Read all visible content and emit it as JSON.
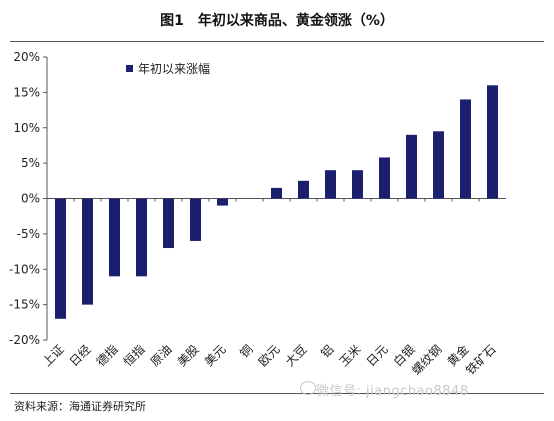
{
  "figure": {
    "title": "图1　年初以来商品、黄金领涨（%）",
    "source": "资料来源：海通证券研究所",
    "watermark": "微信号: jiangchao8848"
  },
  "colors": {
    "bar": "#1a1f6e",
    "axis": "#555555",
    "text": "#222222"
  },
  "chart_data": {
    "type": "bar",
    "title": "",
    "xlabel": "",
    "ylabel": "",
    "ylim": [
      -20,
      20
    ],
    "yticks": [
      -20,
      -15,
      -10,
      -5,
      0,
      5,
      10,
      15,
      20
    ],
    "ytick_labels": [
      "-20%",
      "-15%",
      "-10%",
      "-5%",
      "0%",
      "5%",
      "10%",
      "15%",
      "20%"
    ],
    "legend_position": "top-left",
    "grid": false,
    "categories": [
      "上证",
      "日经",
      "德指",
      "恒指",
      "原油",
      "美股",
      "美元",
      "铜",
      "欧元",
      "大豆",
      "铝",
      "玉米",
      "日元",
      "白银",
      "螺纹钢",
      "黄金",
      "铁矿石"
    ],
    "series": [
      {
        "name": "年初以来涨幅",
        "values": [
          -17,
          -15,
          -11,
          -11,
          -7,
          -6,
          -1,
          0,
          1.5,
          2.5,
          4,
          4,
          5.8,
          9,
          9.5,
          14,
          16
        ]
      }
    ]
  }
}
